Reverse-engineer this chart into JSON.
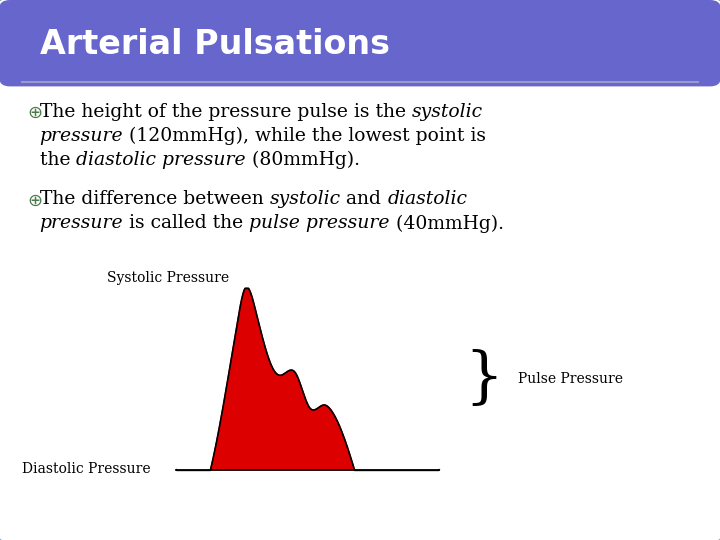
{
  "title": "Arterial Pulsations",
  "title_bg_color": "#6666cc",
  "title_text_color": "#ffffff",
  "card_bg_color": "#ffffff",
  "card_border_color": "#7799aa",
  "bullet_color": "#4a7a4a",
  "fill_color": "#dd0000",
  "line_color": "#000000",
  "label_systolic": "Systolic Pressure",
  "label_diastolic": "Diastolic Pressure",
  "label_pulse": "Pulse Pressure"
}
